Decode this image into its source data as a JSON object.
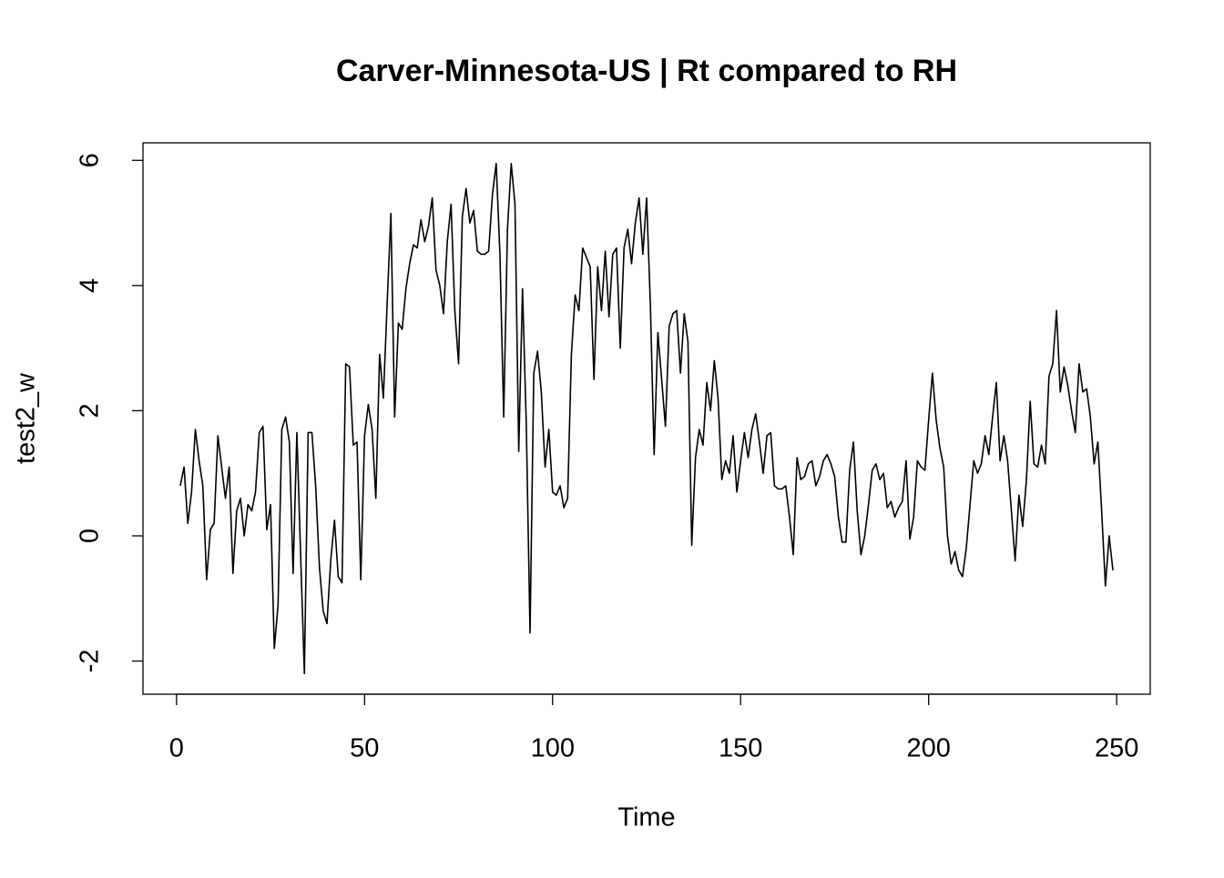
{
  "chart_data": {
    "type": "line",
    "title": "Carver-Minnesota-US | Rt compared to RH",
    "xlabel": "Time",
    "ylabel": "test2_w",
    "x": [
      1,
      2,
      3,
      4,
      5,
      6,
      7,
      8,
      9,
      10,
      11,
      12,
      13,
      14,
      15,
      16,
      17,
      18,
      19,
      20,
      21,
      22,
      23,
      24,
      25,
      26,
      27,
      28,
      29,
      30,
      31,
      32,
      33,
      34,
      35,
      36,
      37,
      38,
      39,
      40,
      41,
      42,
      43,
      44,
      45,
      46,
      47,
      48,
      49,
      50,
      51,
      52,
      53,
      54,
      55,
      56,
      57,
      58,
      59,
      60,
      61,
      62,
      63,
      64,
      65,
      66,
      67,
      68,
      69,
      70,
      71,
      72,
      73,
      74,
      75,
      76,
      77,
      78,
      79,
      80,
      81,
      82,
      83,
      84,
      85,
      86,
      87,
      88,
      89,
      90,
      91,
      92,
      93,
      94,
      95,
      96,
      97,
      98,
      99,
      100,
      101,
      102,
      103,
      104,
      105,
      106,
      107,
      108,
      109,
      110,
      111,
      112,
      113,
      114,
      115,
      116,
      117,
      118,
      119,
      120,
      121,
      122,
      123,
      124,
      125,
      126,
      127,
      128,
      129,
      130,
      131,
      132,
      133,
      134,
      135,
      136,
      137,
      138,
      139,
      140,
      141,
      142,
      143,
      144,
      145,
      146,
      147,
      148,
      149,
      150,
      151,
      152,
      153,
      154,
      155,
      156,
      157,
      158,
      159,
      160,
      161,
      162,
      163,
      164,
      165,
      166,
      167,
      168,
      169,
      170,
      171,
      172,
      173,
      174,
      175,
      176,
      177,
      178,
      179,
      180,
      181,
      182,
      183,
      184,
      185,
      186,
      187,
      188,
      189,
      190,
      191,
      192,
      193,
      194,
      195,
      196,
      197,
      198,
      199,
      200,
      201,
      202,
      203,
      204,
      205,
      206,
      207,
      208,
      209,
      210,
      211,
      212,
      213,
      214,
      215,
      216,
      217,
      218,
      219,
      220,
      221,
      222,
      223,
      224,
      225,
      226,
      227,
      228,
      229,
      230,
      231,
      232,
      233,
      234,
      235,
      236,
      237,
      238,
      239,
      240,
      241,
      242,
      243,
      244,
      245,
      246,
      247,
      248,
      249
    ],
    "series": [
      {
        "color": "#000000",
        "values": [
          0.8,
          1.1,
          0.2,
          0.7,
          1.7,
          1.2,
          0.8,
          -0.7,
          0.1,
          0.2,
          1.6,
          1.1,
          0.6,
          1.1,
          -0.6,
          0.4,
          0.6,
          0.0,
          0.5,
          0.4,
          0.7,
          1.65,
          1.75,
          0.1,
          0.5,
          -1.8,
          -1.1,
          1.7,
          1.9,
          1.5,
          -0.6,
          1.65,
          -0.3,
          -2.2,
          1.65,
          1.65,
          0.8,
          -0.5,
          -1.2,
          -1.4,
          -0.4,
          0.25,
          -0.65,
          -0.75,
          2.75,
          2.7,
          1.45,
          1.5,
          -0.7,
          1.6,
          2.1,
          1.7,
          0.6,
          2.9,
          2.2,
          3.7,
          5.15,
          1.9,
          3.4,
          3.3,
          3.95,
          4.35,
          4.65,
          4.6,
          5.05,
          4.7,
          4.95,
          5.4,
          4.25,
          4.0,
          3.55,
          4.7,
          5.3,
          3.6,
          2.75,
          5.1,
          5.55,
          5.0,
          5.2,
          4.55,
          4.5,
          4.5,
          4.55,
          5.45,
          5.95,
          4.5,
          1.9,
          4.9,
          5.95,
          5.3,
          1.35,
          3.95,
          1.8,
          -1.55,
          2.6,
          2.95,
          2.3,
          1.1,
          1.7,
          0.7,
          0.65,
          0.8,
          0.45,
          0.6,
          2.9,
          3.85,
          3.6,
          4.6,
          4.45,
          4.3,
          2.5,
          4.3,
          3.6,
          4.55,
          3.5,
          4.5,
          4.6,
          3.0,
          4.6,
          4.9,
          4.35,
          5.0,
          5.4,
          4.5,
          5.4,
          3.7,
          1.3,
          3.25,
          2.5,
          1.75,
          3.35,
          3.55,
          3.6,
          2.6,
          3.55,
          3.1,
          -0.15,
          1.25,
          1.7,
          1.45,
          2.45,
          2.0,
          2.8,
          2.2,
          0.9,
          1.2,
          1.0,
          1.6,
          0.7,
          1.2,
          1.65,
          1.25,
          1.7,
          1.95,
          1.5,
          1.0,
          1.6,
          1.65,
          0.8,
          0.75,
          0.75,
          0.8,
          0.3,
          -0.3,
          1.25,
          0.9,
          0.95,
          1.15,
          1.2,
          0.8,
          0.95,
          1.2,
          1.3,
          1.15,
          0.95,
          0.3,
          -0.1,
          -0.1,
          1.05,
          1.5,
          0.4,
          -0.3,
          0.0,
          0.5,
          1.05,
          1.15,
          0.9,
          1.0,
          0.45,
          0.55,
          0.3,
          0.45,
          0.55,
          1.2,
          -0.05,
          0.3,
          1.2,
          1.1,
          1.05,
          1.85,
          2.6,
          1.85,
          1.4,
          1.1,
          0.0,
          -0.45,
          -0.25,
          -0.55,
          -0.65,
          -0.2,
          0.5,
          1.2,
          1.0,
          1.15,
          1.6,
          1.3,
          1.9,
          2.45,
          1.2,
          1.6,
          1.2,
          0.4,
          -0.4,
          0.65,
          0.15,
          0.9,
          2.15,
          1.15,
          1.1,
          1.45,
          1.15,
          2.55,
          2.75,
          3.6,
          2.3,
          2.7,
          2.4,
          2.0,
          1.65,
          2.75,
          2.3,
          2.35,
          1.9,
          1.15,
          1.5,
          0.4,
          -0.8,
          0.0,
          -0.55
        ]
      }
    ],
    "xlim": [
      -8.92,
      258.92
    ],
    "xticks": [
      0,
      50,
      100,
      150,
      200,
      250
    ],
    "ylim": [
      -2.53,
      6.28
    ],
    "yticks": [
      -2,
      0,
      2,
      4,
      6
    ]
  }
}
